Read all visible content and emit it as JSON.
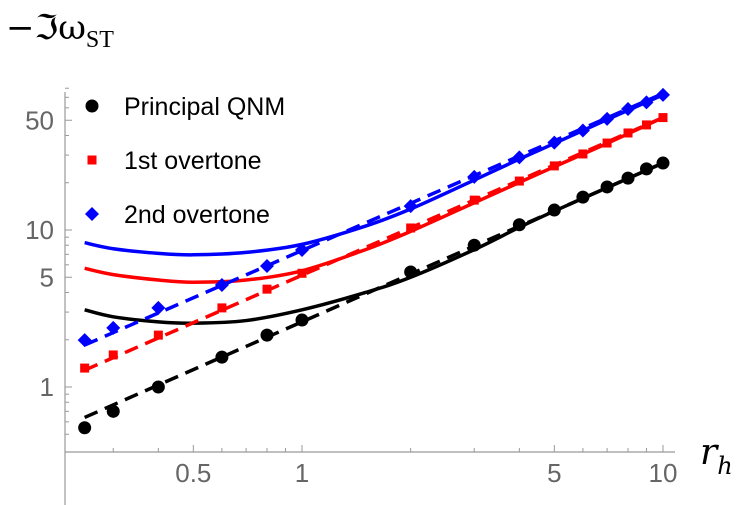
{
  "chart_data": {
    "type": "line",
    "title": "",
    "xlabel": "r_h",
    "ylabel": "-Im ω_ST",
    "xscale": "log",
    "yscale": "log",
    "xlim": [
      0.24,
      11
    ],
    "ylim": [
      0.45,
      85
    ],
    "x_ticks": [
      0.5,
      1,
      5,
      10
    ],
    "x_tick_labels": [
      "0.5",
      "1",
      "5",
      "10"
    ],
    "y_ticks": [
      1,
      5,
      10,
      50
    ],
    "y_tick_labels": [
      "1",
      "5",
      "10",
      "50"
    ],
    "grid": false,
    "legend_position": "upper-left",
    "x": [
      0.25,
      0.3,
      0.4,
      0.6,
      0.8,
      1,
      2,
      3,
      4,
      5,
      6,
      7,
      8,
      9,
      10
    ],
    "series": [
      {
        "name": "Principal QNM",
        "color": "#000000",
        "marker": "circle",
        "values": [
          0.55,
          0.7,
          1.0,
          1.55,
          2.14,
          2.67,
          5.4,
          8.0,
          10.8,
          13.4,
          16.2,
          18.8,
          21.4,
          24.5,
          26.7
        ],
        "dashed_fit": [
          [
            0.25,
            0.64
          ],
          [
            10,
            26.7
          ]
        ],
        "solid_curve": [
          [
            0.25,
            3.1
          ],
          [
            0.3,
            2.8
          ],
          [
            0.4,
            2.6
          ],
          [
            0.5,
            2.55
          ],
          [
            0.7,
            2.65
          ],
          [
            1,
            3.1
          ],
          [
            1.5,
            4.0
          ],
          [
            2,
            5.0
          ],
          [
            3,
            7.5
          ],
          [
            4,
            10.4
          ],
          [
            5,
            13.2
          ],
          [
            7,
            18.6
          ],
          [
            10,
            26.7
          ]
        ]
      },
      {
        "name": "1st overtone",
        "color": "#ff0000",
        "marker": "square",
        "values": [
          1.32,
          1.6,
          2.14,
          3.19,
          4.2,
          5.3,
          10.3,
          15.5,
          20.5,
          25.6,
          30.5,
          35.8,
          41.5,
          46.7,
          52
        ],
        "dashed_fit": [
          [
            0.25,
            1.28
          ],
          [
            10,
            52
          ]
        ],
        "solid_curve": [
          [
            0.25,
            5.7
          ],
          [
            0.3,
            5.2
          ],
          [
            0.4,
            4.8
          ],
          [
            0.5,
            4.65
          ],
          [
            0.7,
            4.8
          ],
          [
            1,
            5.5
          ],
          [
            1.5,
            7.5
          ],
          [
            2,
            9.8
          ],
          [
            3,
            14.9
          ],
          [
            4,
            20.1
          ],
          [
            5,
            25.3
          ],
          [
            7,
            35.6
          ],
          [
            10,
            52
          ]
        ]
      },
      {
        "name": "2nd overtone",
        "color": "#0000ff",
        "marker": "diamond",
        "values": [
          1.99,
          2.38,
          3.19,
          4.46,
          5.9,
          7.46,
          14.2,
          21.8,
          29,
          36,
          43,
          51,
          59,
          65,
          72.5
        ],
        "dashed_fit": [
          [
            0.25,
            1.85
          ],
          [
            10,
            74
          ]
        ],
        "solid_curve": [
          [
            0.25,
            8.3
          ],
          [
            0.3,
            7.6
          ],
          [
            0.4,
            7.1
          ],
          [
            0.5,
            6.95
          ],
          [
            0.7,
            7.2
          ],
          [
            1,
            8.1
          ],
          [
            1.5,
            10.6
          ],
          [
            2,
            13.6
          ],
          [
            3,
            20.8
          ],
          [
            4,
            28.3
          ],
          [
            5,
            35.6
          ],
          [
            7,
            50.5
          ],
          [
            10,
            72.5
          ]
        ]
      }
    ]
  },
  "labels": {
    "y_prefix": "−ℑω",
    "y_sub": "ST",
    "x_main": "r",
    "x_sub": "h"
  }
}
